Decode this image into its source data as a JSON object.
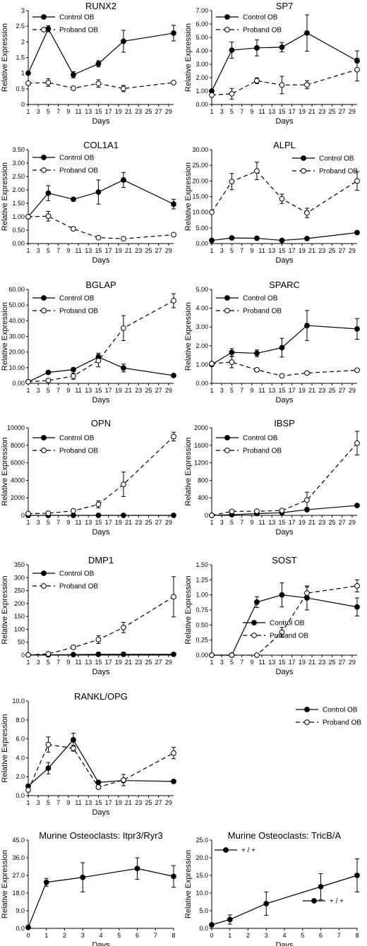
{
  "chart_data": [
    {
      "type": "line",
      "title": "RUNX2",
      "xlabel": "Days",
      "ylabel": "Relative Expression",
      "xlim": [
        1,
        30
      ],
      "xticks": [
        1,
        3,
        5,
        7,
        9,
        11,
        13,
        15,
        17,
        19,
        21,
        23,
        25,
        27,
        29
      ],
      "ylim": [
        0,
        3
      ],
      "yticks": [
        "0",
        "0.5",
        "1",
        "1.5",
        "2",
        "2.5",
        "3"
      ],
      "legend": "top-left",
      "grid": false,
      "series": [
        {
          "name": "Control OB",
          "style": "solid",
          "marker": "filled",
          "x": [
            1,
            5,
            10,
            15,
            20,
            30
          ],
          "y": [
            1.0,
            2.42,
            0.95,
            1.3,
            2.02,
            2.28
          ],
          "err": [
            0,
            0.1,
            0.1,
            0.1,
            0.35,
            0.25
          ]
        },
        {
          "name": "Proband OB",
          "style": "dashed",
          "marker": "open",
          "x": [
            1,
            5,
            10,
            15,
            20,
            30
          ],
          "y": [
            0.68,
            0.7,
            0.52,
            0.67,
            0.51,
            0.7
          ],
          "err": [
            0,
            0.12,
            0.03,
            0.12,
            0.1,
            0.03
          ]
        }
      ]
    },
    {
      "type": "line",
      "title": "SP7",
      "xlabel": "Days",
      "ylabel": "Relative Expression",
      "xlim": [
        1,
        30
      ],
      "xticks": [
        1,
        3,
        5,
        7,
        9,
        11,
        13,
        15,
        17,
        19,
        21,
        23,
        25,
        27,
        29
      ],
      "ylim": [
        0,
        7
      ],
      "yticks": [
        "0.00",
        "1.00",
        "2.00",
        "3.00",
        "4.00",
        "5.00",
        "6.00",
        "7.00"
      ],
      "legend": "top-left",
      "grid": false,
      "series": [
        {
          "name": "Control OB",
          "style": "solid",
          "marker": "filled",
          "x": [
            1,
            5,
            10,
            15,
            20,
            30
          ],
          "y": [
            1.0,
            4.05,
            4.22,
            4.27,
            5.33,
            3.25
          ],
          "err": [
            0,
            0.6,
            0.6,
            0.35,
            1.35,
            0.75
          ]
        },
        {
          "name": "Proband OB",
          "style": "dashed",
          "marker": "open",
          "x": [
            1,
            5,
            10,
            15,
            20,
            30
          ],
          "y": [
            0.7,
            0.8,
            1.77,
            1.45,
            1.47,
            2.6
          ],
          "err": [
            0,
            0.4,
            0.22,
            0.65,
            0.3,
            0.85
          ]
        }
      ]
    },
    {
      "type": "line",
      "title": "COL1A1",
      "xlabel": "Days",
      "ylabel": "Relative Expression",
      "xlim": [
        1,
        30
      ],
      "xticks": [
        1,
        3,
        5,
        7,
        9,
        11,
        13,
        15,
        17,
        19,
        21,
        23,
        25,
        27,
        29
      ],
      "ylim": [
        0,
        3.5
      ],
      "yticks": [
        "0.00",
        "0.50",
        "1.00",
        "1.50",
        "2.00",
        "2.50",
        "3.00",
        "3.50"
      ],
      "legend": "top-left",
      "grid": false,
      "series": [
        {
          "name": "Control OB",
          "style": "solid",
          "marker": "filled",
          "x": [
            1,
            5,
            10,
            15,
            20,
            30
          ],
          "y": [
            1.0,
            1.88,
            1.65,
            1.92,
            2.37,
            1.47
          ],
          "err": [
            0,
            0.28,
            0.06,
            0.45,
            0.28,
            0.18
          ]
        },
        {
          "name": "Proband OB",
          "style": "dashed",
          "marker": "open",
          "x": [
            1,
            5,
            10,
            15,
            20,
            30
          ],
          "y": [
            1.0,
            1.02,
            0.55,
            0.22,
            0.18,
            0.33
          ],
          "err": [
            0,
            0.18,
            0.07,
            0.03,
            0.02,
            0.03
          ]
        }
      ]
    },
    {
      "type": "line",
      "title": "ALPL",
      "xlabel": "Days",
      "ylabel": "Relative Expression",
      "xlim": [
        1,
        30
      ],
      "xticks": [
        1,
        3,
        5,
        7,
        9,
        11,
        13,
        15,
        17,
        19,
        21,
        23,
        25,
        27,
        29
      ],
      "ylim": [
        0,
        30
      ],
      "yticks": [
        "0.00",
        "5.00",
        "10.00",
        "15.00",
        "20.00",
        "25.00",
        "30.00"
      ],
      "legend": "top-right",
      "grid": false,
      "series": [
        {
          "name": "Control OB",
          "style": "solid",
          "marker": "filled",
          "x": [
            1,
            5,
            10,
            15,
            20,
            30
          ],
          "y": [
            1.0,
            1.8,
            1.7,
            1.0,
            1.6,
            3.5
          ],
          "err": [
            0,
            0.2,
            0.2,
            0.2,
            0.2,
            0.3
          ]
        },
        {
          "name": "Proband OB",
          "style": "dashed",
          "marker": "open",
          "x": [
            1,
            5,
            10,
            15,
            20,
            30
          ],
          "y": [
            10.0,
            19.8,
            23.2,
            14.3,
            9.8,
            20.0
          ],
          "err": [
            0.3,
            2.6,
            2.8,
            1.5,
            1.5,
            3.0
          ]
        }
      ]
    },
    {
      "type": "line",
      "title": "BGLAP",
      "xlabel": "Days",
      "ylabel": "Relative Expression",
      "xlim": [
        1,
        30
      ],
      "xticks": [
        1,
        3,
        5,
        7,
        9,
        11,
        13,
        15,
        17,
        19,
        21,
        23,
        25,
        27,
        29
      ],
      "ylim": [
        0,
        60
      ],
      "yticks": [
        "0.00",
        "10.00",
        "20.00",
        "30.00",
        "40.00",
        "50.00",
        "60.00"
      ],
      "legend": "top-left",
      "grid": false,
      "series": [
        {
          "name": "Control OB",
          "style": "solid",
          "marker": "filled",
          "x": [
            1,
            5,
            10,
            15,
            20,
            30
          ],
          "y": [
            1.0,
            7.0,
            8.8,
            16.8,
            9.8,
            5.0
          ],
          "err": [
            0,
            0.8,
            1.0,
            2.5,
            2.5,
            0.5
          ]
        },
        {
          "name": "Proband OB",
          "style": "dashed",
          "marker": "open",
          "x": [
            1,
            5,
            10,
            15,
            20,
            30
          ],
          "y": [
            1.0,
            1.8,
            4.6,
            14.5,
            35.3,
            52.8
          ],
          "err": [
            0,
            0.5,
            2.0,
            4.0,
            8.0,
            4.5
          ]
        }
      ]
    },
    {
      "type": "line",
      "title": "SPARC",
      "xlabel": "Days",
      "ylabel": "Relative Expression",
      "xlim": [
        1,
        30
      ],
      "xticks": [
        1,
        3,
        5,
        7,
        9,
        11,
        13,
        15,
        17,
        19,
        21,
        23,
        25,
        27,
        29
      ],
      "ylim": [
        0,
        5
      ],
      "yticks": [
        "0.00",
        "1.00",
        "2.00",
        "3.00",
        "4.00",
        "5.00"
      ],
      "legend": "top-left",
      "grid": false,
      "series": [
        {
          "name": "Control OB",
          "style": "solid",
          "marker": "filled",
          "x": [
            1,
            5,
            10,
            15,
            20,
            30
          ],
          "y": [
            1.0,
            1.65,
            1.6,
            1.9,
            3.08,
            2.9
          ],
          "err": [
            0,
            0.2,
            0.18,
            0.5,
            0.8,
            0.55
          ]
        },
        {
          "name": "Proband OB",
          "style": "dashed",
          "marker": "open",
          "x": [
            1,
            5,
            10,
            15,
            20,
            30
          ],
          "y": [
            1.05,
            1.13,
            0.72,
            0.4,
            0.55,
            0.7
          ],
          "err": [
            0.1,
            0.3,
            0.1,
            0.04,
            0.04,
            0.06
          ]
        }
      ]
    },
    {
      "type": "line",
      "title": "OPN",
      "xlabel": "Days",
      "ylabel": "Relative Expression",
      "xlim": [
        1,
        30
      ],
      "xticks": [
        1,
        3,
        5,
        7,
        9,
        11,
        13,
        15,
        17,
        19,
        21,
        23,
        25,
        27,
        29
      ],
      "ylim": [
        0,
        10000
      ],
      "yticks": [
        "0",
        "2000",
        "4000",
        "6000",
        "8000",
        "10000"
      ],
      "legend": "top-left",
      "grid": false,
      "series": [
        {
          "name": "Control OB",
          "style": "solid",
          "marker": "filled",
          "x": [
            1,
            5,
            10,
            15,
            20,
            30
          ],
          "y": [
            1,
            1,
            1,
            1,
            1,
            1
          ],
          "err": [
            0,
            0,
            0,
            0,
            0,
            0
          ]
        },
        {
          "name": "Proband OB",
          "style": "dashed",
          "marker": "open",
          "x": [
            1,
            5,
            10,
            15,
            20,
            30
          ],
          "y": [
            200,
            240,
            520,
            1250,
            3550,
            9000
          ],
          "err": [
            0,
            40,
            80,
            400,
            1400,
            500
          ]
        }
      ]
    },
    {
      "type": "line",
      "title": "IBSP",
      "xlabel": "Days",
      "ylabel": "Relative Expression",
      "xlim": [
        1,
        30
      ],
      "xticks": [
        1,
        3,
        5,
        7,
        9,
        11,
        13,
        15,
        17,
        19,
        21,
        23,
        25,
        27,
        29
      ],
      "ylim": [
        0,
        2000
      ],
      "yticks": [
        "0",
        "400",
        "800",
        "1200",
        "1600",
        "2000"
      ],
      "legend": "top-left",
      "grid": false,
      "series": [
        {
          "name": "Control OB",
          "style": "solid",
          "marker": "filled",
          "x": [
            1,
            5,
            10,
            15,
            20,
            30
          ],
          "y": [
            1,
            15,
            40,
            60,
            130,
            225
          ],
          "err": [
            0,
            10,
            15,
            20,
            40,
            25
          ]
        },
        {
          "name": "Proband OB",
          "style": "dashed",
          "marker": "open",
          "x": [
            1,
            5,
            10,
            15,
            20,
            30
          ],
          "y": [
            1,
            90,
            95,
            110,
            350,
            1650
          ],
          "err": [
            0,
            20,
            20,
            30,
            180,
            270
          ]
        }
      ]
    },
    {
      "type": "line",
      "title": "DMP1",
      "xlabel": "Days",
      "ylabel": "Relative Expression",
      "xlim": [
        1,
        30
      ],
      "xticks": [
        1,
        3,
        5,
        7,
        9,
        11,
        13,
        15,
        17,
        19,
        21,
        23,
        25,
        27,
        29
      ],
      "ylim": [
        0,
        350
      ],
      "yticks": [
        "0",
        "50",
        "100",
        "150",
        "200",
        "250",
        "300",
        "350"
      ],
      "legend": "top-left",
      "grid": false,
      "series": [
        {
          "name": "Control OB",
          "style": "solid",
          "marker": "filled",
          "x": [
            1,
            5,
            10,
            15,
            20,
            30
          ],
          "y": [
            1,
            1,
            2,
            3,
            3,
            3
          ],
          "err": [
            0,
            1,
            3,
            8,
            8,
            3
          ]
        },
        {
          "name": "Proband OB",
          "style": "dashed",
          "marker": "open",
          "x": [
            1,
            5,
            10,
            15,
            20,
            30
          ],
          "y": [
            1,
            5,
            30,
            60,
            107,
            226
          ],
          "err": [
            0,
            2,
            5,
            15,
            20,
            78
          ]
        }
      ]
    },
    {
      "type": "line",
      "title": "SOST",
      "xlabel": "Days",
      "ylabel": "Relative Expression",
      "xlim": [
        1,
        30
      ],
      "xticks": [
        1,
        3,
        5,
        7,
        9,
        11,
        13,
        15,
        17,
        19,
        21,
        23,
        25,
        27,
        29
      ],
      "ylim": [
        0,
        1.5
      ],
      "yticks": [
        "0.00",
        "0.25",
        "0.50",
        "0.75",
        "1.00",
        "1.25",
        "1.50"
      ],
      "legend": "bottom-right",
      "grid": false,
      "series": [
        {
          "name": "Control OB",
          "style": "solid",
          "marker": "filled",
          "x": [
            1,
            5,
            10,
            15,
            20,
            30
          ],
          "y": [
            0,
            0,
            0.88,
            1.0,
            0.95,
            0.8
          ],
          "err": [
            0,
            0,
            0.09,
            0.2,
            0.2,
            0.15
          ]
        },
        {
          "name": "Proband OB",
          "style": "dashed",
          "marker": "open",
          "x": [
            1,
            5,
            10,
            15,
            20,
            30
          ],
          "y": [
            0,
            0,
            0,
            0.38,
            1.03,
            1.15
          ],
          "err": [
            0,
            0,
            0,
            0.08,
            0.1,
            0.1
          ]
        }
      ]
    },
    {
      "type": "line",
      "title": "RANKL/OPG",
      "xlabel": "Days",
      "ylabel": "Relative Expression",
      "xlim": [
        1,
        30
      ],
      "xticks": [
        1,
        3,
        5,
        7,
        9,
        11,
        13,
        15,
        17,
        19,
        21,
        23,
        25,
        27,
        29
      ],
      "ylim": [
        0,
        10
      ],
      "yticks": [
        "0.0",
        "2.0",
        "4.0",
        "6.0",
        "8.0",
        "10.0"
      ],
      "legend": "top-right",
      "grid": false,
      "series": [
        {
          "name": "Control OB",
          "style": "solid",
          "marker": "filled",
          "x": [
            1,
            5,
            10,
            15,
            20,
            30
          ],
          "y": [
            1.0,
            2.9,
            5.9,
            1.4,
            1.6,
            1.5
          ],
          "err": [
            0,
            0.6,
            0.7,
            0.2,
            0.2,
            0.1
          ]
        },
        {
          "name": "Proband OB",
          "style": "dashed",
          "marker": "open",
          "x": [
            1,
            5,
            10,
            15,
            20,
            30
          ],
          "y": [
            0.6,
            5.4,
            5.0,
            0.9,
            1.65,
            4.5
          ],
          "err": [
            0,
            0.8,
            0.3,
            0.2,
            0.6,
            0.6
          ]
        }
      ]
    },
    {
      "type": "line",
      "title": "Murine Osteoclasts: Itpr3/Ryr3",
      "xlabel": "Days",
      "ylabel": "Relative Expression",
      "xlim": [
        0,
        8
      ],
      "xticks": [
        0,
        1,
        2,
        3,
        4,
        5,
        6,
        7,
        8
      ],
      "ylim": [
        0,
        45
      ],
      "yticks": [
        "0.0",
        "9.0",
        "18.0",
        "27.0",
        "36.0",
        "45.0"
      ],
      "legend": "bottom-right",
      "grid": false,
      "series": [
        {
          "name": "+ / +",
          "style": "solid",
          "marker": "filled",
          "x": [
            0,
            1,
            3,
            6,
            8
          ],
          "y": [
            0.5,
            23.5,
            26.0,
            30.5,
            26.5
          ],
          "err": [
            0,
            2.0,
            7.5,
            5.5,
            5.5
          ]
        }
      ]
    },
    {
      "type": "line",
      "title": "Murine Osteoclasts: TricB/A",
      "xlabel": "Days",
      "ylabel": "Relative Expression",
      "xlim": [
        0,
        8
      ],
      "xticks": [
        0,
        1,
        2,
        3,
        4,
        5,
        6,
        7,
        8
      ],
      "ylim": [
        0,
        25
      ],
      "yticks": [
        "0.0",
        "5.0",
        "10.0",
        "15.0",
        "20.0",
        "25.0"
      ],
      "legend": "top-left",
      "grid": false,
      "series": [
        {
          "name": "+ / +",
          "style": "solid",
          "marker": "filled",
          "x": [
            0,
            1,
            3,
            6,
            8
          ],
          "y": [
            1.0,
            2.5,
            7.0,
            11.8,
            15.0
          ],
          "err": [
            0,
            1.3,
            3.3,
            3.7,
            4.7
          ]
        }
      ]
    }
  ]
}
